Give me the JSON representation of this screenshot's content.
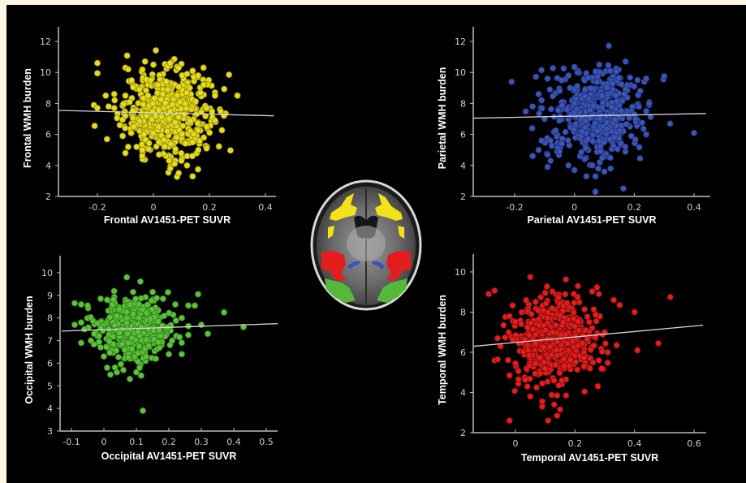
{
  "chart_data": [
    {
      "id": "frontal",
      "type": "scatter",
      "xlabel": "Frontal AV1451-PET SUVR",
      "ylabel": "Frontal WMH burden",
      "xlim": [
        -0.34,
        0.43
      ],
      "ylim": [
        2,
        13
      ],
      "xticks": [
        -0.2,
        0,
        0.2,
        0.4
      ],
      "xtick_labels": [
        "-0.2",
        "0",
        "0.2",
        "0.4"
      ],
      "yticks": [
        2,
        4,
        6,
        8,
        10,
        12
      ],
      "ytick_labels": [
        "2",
        "4",
        "6",
        "8",
        "10",
        "12"
      ],
      "color": "#e6dc1c",
      "edge_color": "#8f8712",
      "grid": false,
      "regression": {
        "x": [
          -0.34,
          0.43
        ],
        "y": [
          7.55,
          7.2
        ]
      },
      "cluster": {
        "n": 520,
        "x_mean": 0.05,
        "x_sd": 0.075,
        "y_mean": 7.4,
        "y_sd": 1.35
      },
      "points": [
        [
          -0.2,
          10.6
        ],
        [
          -0.2,
          9.95
        ],
        [
          -0.21,
          6.55
        ],
        [
          -0.2,
          7.7
        ],
        [
          -0.17,
          8.5
        ],
        [
          -0.16,
          7.8
        ],
        [
          -0.14,
          8.6
        ],
        [
          -0.13,
          7.05
        ],
        [
          -0.12,
          6.6
        ],
        [
          -0.11,
          5.9
        ],
        [
          -0.14,
          7.7
        ],
        [
          -0.1,
          10.3
        ],
        [
          -0.09,
          10.2
        ],
        [
          -0.03,
          10.7
        ],
        [
          0.0,
          10.5
        ],
        [
          0.05,
          10.4
        ],
        [
          0.06,
          10.6
        ],
        [
          0.1,
          10.55
        ],
        [
          0.09,
          10.3
        ],
        [
          0.14,
          10.1
        ],
        [
          0.27,
          9.85
        ],
        [
          0.3,
          8.5
        ],
        [
          0.24,
          7.5
        ],
        [
          0.22,
          6.9
        ],
        [
          0.22,
          8.7
        ],
        [
          0.22,
          8.5
        ],
        [
          0.19,
          7.7
        ],
        [
          0.19,
          5.1
        ],
        [
          0.16,
          5.0
        ],
        [
          0.14,
          5.5
        ],
        [
          0.12,
          4.0
        ],
        [
          0.1,
          4.3
        ],
        [
          0.09,
          3.5
        ],
        [
          0.06,
          3.8
        ],
        [
          0.14,
          3.3
        ],
        [
          0.02,
          4.7
        ],
        [
          -0.04,
          4.6
        ],
        [
          -0.09,
          5.2
        ],
        [
          -0.1,
          4.8
        ],
        [
          -0.06,
          5.2
        ],
        [
          -0.04,
          5.0
        ],
        [
          0.18,
          5.8
        ],
        [
          0.19,
          6.5
        ],
        [
          0.18,
          9.2
        ],
        [
          0.16,
          9.8
        ],
        [
          -0.1,
          7.2
        ],
        [
          -0.1,
          8.5
        ],
        [
          -0.08,
          6.1
        ],
        [
          -0.07,
          6.5
        ],
        [
          -0.05,
          8.9
        ],
        [
          0.12,
          9.9
        ],
        [
          0.13,
          9.0
        ]
      ]
    },
    {
      "id": "parietal",
      "type": "scatter",
      "xlabel": "Parietal AV1451-PET SUVR",
      "ylabel": "Parietal WMH burden",
      "xlim": [
        -0.34,
        0.44
      ],
      "ylim": [
        2,
        13
      ],
      "xticks": [
        -0.2,
        0,
        0.2,
        0.4
      ],
      "xtick_labels": [
        "-0.2",
        "0",
        "0.2",
        "0.4"
      ],
      "yticks": [
        2,
        4,
        6,
        8,
        10,
        12
      ],
      "ytick_labels": [
        "2",
        "4",
        "6",
        "8",
        "10",
        "12"
      ],
      "color": "#3a55b8",
      "edge_color": "#1f2f6e",
      "grid": false,
      "regression": {
        "x": [
          -0.34,
          0.44
        ],
        "y": [
          7.05,
          7.35
        ]
      },
      "cluster": {
        "n": 480,
        "x_mean": 0.07,
        "x_sd": 0.075,
        "y_mean": 7.3,
        "y_sd": 1.35
      },
      "points": [
        [
          -0.21,
          9.4
        ],
        [
          -0.11,
          10.15
        ],
        [
          -0.09,
          9.6
        ],
        [
          -0.14,
          7.8
        ],
        [
          -0.12,
          8.6
        ],
        [
          -0.11,
          8.2
        ],
        [
          -0.1,
          7.0
        ],
        [
          -0.11,
          5.6
        ],
        [
          -0.12,
          5.0
        ],
        [
          -0.14,
          4.6
        ],
        [
          -0.09,
          4.7
        ],
        [
          -0.09,
          3.9
        ],
        [
          -0.08,
          4.3
        ],
        [
          -0.08,
          5.6
        ],
        [
          -0.05,
          4.9
        ],
        [
          -0.02,
          4.0
        ],
        [
          0.0,
          3.7
        ],
        [
          0.04,
          3.3
        ],
        [
          0.07,
          3.3
        ],
        [
          0.07,
          2.3
        ],
        [
          0.1,
          3.6
        ],
        [
          0.0,
          10.35
        ],
        [
          -0.02,
          9.8
        ],
        [
          0.01,
          10.0
        ],
        [
          0.07,
          10.05
        ],
        [
          0.12,
          10.1
        ],
        [
          0.14,
          10.25
        ],
        [
          0.14,
          10.05
        ],
        [
          0.24,
          9.6
        ],
        [
          0.3,
          9.75
        ],
        [
          0.4,
          6.1
        ],
        [
          0.32,
          6.7
        ],
        [
          0.24,
          6.0
        ],
        [
          0.24,
          7.5
        ],
        [
          0.25,
          7.9
        ],
        [
          0.25,
          8.0
        ],
        [
          0.22,
          8.8
        ],
        [
          0.2,
          9.1
        ],
        [
          0.2,
          7.3
        ],
        [
          0.19,
          5.9
        ],
        [
          0.17,
          5.2
        ],
        [
          0.12,
          4.5
        ],
        [
          0.06,
          4.0
        ],
        [
          0.08,
          3.8
        ]
      ]
    },
    {
      "id": "occipital",
      "type": "scatter",
      "xlabel": "Occipital AV1451-PET SUVR",
      "ylabel": "Occipital WMH burden",
      "xlim": [
        -0.135,
        0.535
      ],
      "ylim": [
        3,
        10.7
      ],
      "xticks": [
        -0.1,
        0,
        0.1,
        0.2,
        0.3,
        0.4,
        0.5
      ],
      "xtick_labels": [
        "-0.1",
        "0",
        "0.1",
        "0.2",
        "0.3",
        "0.4",
        "0.5"
      ],
      "yticks": [
        3,
        4,
        5,
        6,
        7,
        8,
        9,
        10
      ],
      "ytick_labels": [
        "3",
        "4",
        "5",
        "6",
        "7",
        "8",
        "9",
        "10"
      ],
      "color": "#5cc23a",
      "edge_color": "#2f7a1c",
      "grid": false,
      "regression": {
        "x": [
          -0.13,
          0.535
        ],
        "y": [
          7.42,
          7.75
        ]
      },
      "cluster": {
        "n": 460,
        "x_mean": 0.1,
        "x_sd": 0.055,
        "y_mean": 7.55,
        "y_sd": 0.65
      },
      "points": [
        [
          -0.09,
          8.65
        ],
        [
          -0.07,
          8.6
        ],
        [
          -0.05,
          8.55
        ],
        [
          -0.09,
          7.7
        ],
        [
          -0.07,
          7.8
        ],
        [
          -0.06,
          7.5
        ],
        [
          -0.07,
          6.9
        ],
        [
          -0.04,
          7.0
        ],
        [
          -0.03,
          7.3
        ],
        [
          -0.01,
          8.85
        ],
        [
          0.01,
          8.8
        ],
        [
          0.09,
          9.15
        ],
        [
          0.15,
          9.15
        ],
        [
          0.29,
          9.05
        ],
        [
          0.26,
          8.55
        ],
        [
          0.28,
          8.55
        ],
        [
          0.37,
          8.25
        ],
        [
          0.3,
          7.7
        ],
        [
          0.32,
          7.3
        ],
        [
          0.43,
          7.6
        ],
        [
          0.26,
          7.25
        ],
        [
          0.24,
          6.4
        ],
        [
          0.2,
          6.4
        ],
        [
          0.16,
          6.2
        ],
        [
          0.13,
          6.3
        ],
        [
          0.11,
          5.8
        ],
        [
          0.1,
          5.6
        ],
        [
          0.08,
          5.3
        ],
        [
          0.06,
          5.7
        ],
        [
          0.04,
          5.6
        ],
        [
          0.02,
          5.5
        ],
        [
          0.01,
          5.8
        ],
        [
          0.0,
          6.3
        ],
        [
          -0.01,
          6.7
        ],
        [
          0.12,
          3.9
        ],
        [
          0.22,
          8.6
        ],
        [
          0.24,
          8.0
        ],
        [
          0.21,
          7.0
        ]
      ]
    },
    {
      "id": "temporal",
      "type": "scatter",
      "xlabel": "Temporal AV1451-PET SUVR",
      "ylabel": "Temporal WMH burden",
      "xlim": [
        -0.14,
        0.63
      ],
      "ylim": [
        2,
        10.9
      ],
      "xticks": [
        0,
        0.2,
        0.4,
        0.6
      ],
      "xtick_labels": [
        "0",
        "0.2",
        "0.4",
        "0.6"
      ],
      "yticks": [
        2,
        4,
        6,
        8,
        10
      ],
      "ytick_labels": [
        "2",
        "4",
        "6",
        "8",
        "10"
      ],
      "color": "#e31e1e",
      "edge_color": "#7a0c0c",
      "grid": false,
      "regression": {
        "x": [
          -0.14,
          0.63
        ],
        "y": [
          6.3,
          7.35
        ]
      },
      "cluster": {
        "n": 520,
        "x_mean": 0.13,
        "x_sd": 0.07,
        "y_mean": 6.7,
        "y_sd": 1.1
      },
      "points": [
        [
          -0.09,
          8.9
        ],
        [
          0.05,
          9.75
        ],
        [
          0.21,
          9.3
        ],
        [
          0.28,
          8.9
        ],
        [
          0.52,
          8.75
        ],
        [
          0.33,
          8.6
        ],
        [
          0.35,
          8.35
        ],
        [
          0.4,
          8.0
        ],
        [
          0.48,
          6.45
        ],
        [
          0.41,
          6.1
        ],
        [
          0.34,
          6.35
        ],
        [
          0.31,
          6.0
        ],
        [
          0.29,
          5.2
        ],
        [
          0.28,
          5.6
        ],
        [
          -0.06,
          6.7
        ],
        [
          -0.05,
          6.3
        ],
        [
          -0.07,
          5.6
        ],
        [
          -0.06,
          5.65
        ],
        [
          -0.02,
          7.8
        ],
        [
          -0.04,
          7.35
        ],
        [
          -0.02,
          4.85
        ],
        [
          0.01,
          4.65
        ],
        [
          0.0,
          5.45
        ],
        [
          -0.02,
          2.6
        ],
        [
          0.11,
          2.6
        ],
        [
          0.14,
          2.85
        ],
        [
          0.15,
          3.15
        ],
        [
          0.13,
          3.4
        ],
        [
          0.09,
          3.3
        ],
        [
          0.09,
          3.55
        ],
        [
          0.14,
          3.85
        ],
        [
          0.05,
          3.8
        ],
        [
          0.04,
          4.3
        ],
        [
          0.09,
          4.45
        ],
        [
          0.17,
          3.85
        ],
        [
          0.26,
          5.5
        ],
        [
          0.25,
          5.2
        ],
        [
          0.3,
          7.0
        ]
      ]
    }
  ],
  "brain_image": {
    "label": "axial-brain-slice",
    "regions": [
      {
        "name": "frontal",
        "color": "#f2e21a"
      },
      {
        "name": "parietal",
        "color": "#3a4fc4"
      },
      {
        "name": "temporal",
        "color": "#e31e1e"
      },
      {
        "name": "occipital",
        "color": "#55b83a"
      }
    ]
  }
}
